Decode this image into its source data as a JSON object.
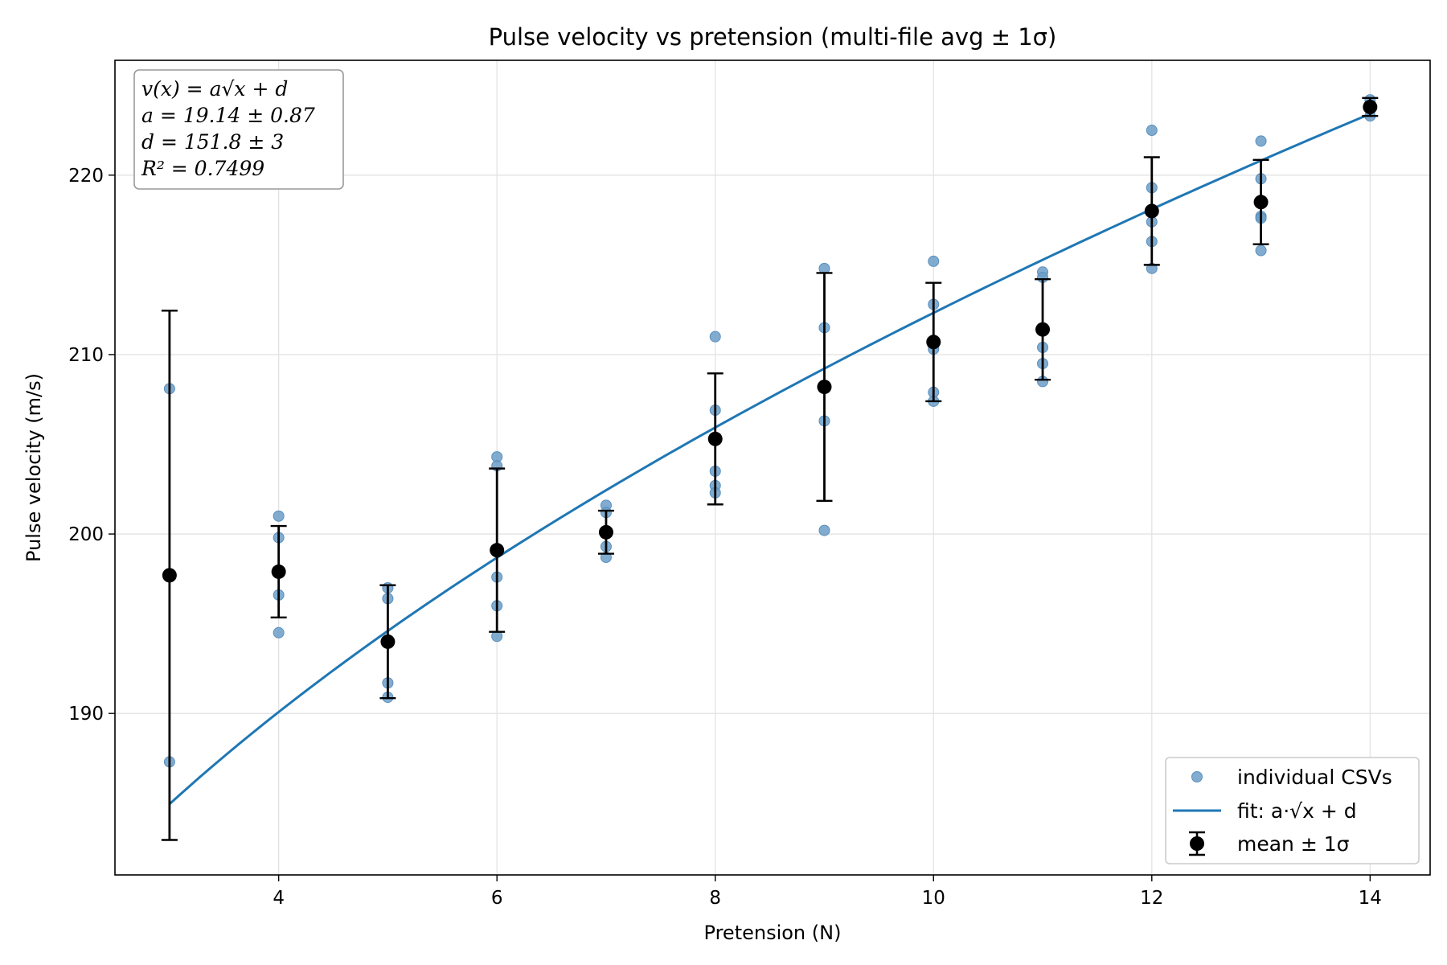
{
  "chart_data": {
    "type": "scatter",
    "title": "Pulse velocity vs pretension (multi-file avg ± 1σ)",
    "xlabel": "Pretension (N)",
    "ylabel": "Pulse velocity (m/s)",
    "xlim": [
      2.5,
      14.55
    ],
    "ylim": [
      181,
      226.4
    ],
    "x_ticks": [
      4,
      6,
      8,
      10,
      12,
      14
    ],
    "y_ticks": [
      190,
      200,
      210,
      220
    ],
    "grid": true,
    "legend_position": "lower-right",
    "legend": [
      {
        "label": "individual CSVs",
        "kind": "marker",
        "color": "#6b9dc8"
      },
      {
        "label": "fit: a·√x + d",
        "kind": "line",
        "color": "#1f77b4"
      },
      {
        "label": "mean ± 1σ",
        "kind": "errorbar",
        "color": "#000000"
      }
    ],
    "annotation": {
      "lines": [
        "v(x) = a√x + d",
        "a = 19.14 ± 0.87",
        "d = 151.8 ± 3",
        "R² = 0.7499"
      ]
    },
    "series": [
      {
        "name": "individual CSVs",
        "color": "#6b9dc8",
        "points": [
          [
            3,
            208.1
          ],
          [
            3,
            187.3
          ],
          [
            4,
            201.0
          ],
          [
            4,
            199.8
          ],
          [
            4,
            196.6
          ],
          [
            4,
            194.5
          ],
          [
            5,
            197.0
          ],
          [
            5,
            196.4
          ],
          [
            5,
            191.7
          ],
          [
            5,
            190.9
          ],
          [
            6,
            204.3
          ],
          [
            6,
            203.8
          ],
          [
            6,
            197.6
          ],
          [
            6,
            196.0
          ],
          [
            6,
            194.3
          ],
          [
            7,
            201.6
          ],
          [
            7,
            201.2
          ],
          [
            7,
            199.3
          ],
          [
            7,
            198.7
          ],
          [
            8,
            211.0
          ],
          [
            8,
            206.9
          ],
          [
            8,
            203.5
          ],
          [
            8,
            202.7
          ],
          [
            8,
            202.3
          ],
          [
            9,
            214.8
          ],
          [
            9,
            211.5
          ],
          [
            9,
            206.3
          ],
          [
            9,
            200.2
          ],
          [
            10,
            215.2
          ],
          [
            10,
            212.8
          ],
          [
            10,
            210.3
          ],
          [
            10,
            207.9
          ],
          [
            10,
            207.4
          ],
          [
            11,
            214.6
          ],
          [
            11,
            214.3
          ],
          [
            11,
            210.4
          ],
          [
            11,
            209.5
          ],
          [
            11,
            208.5
          ],
          [
            12,
            222.5
          ],
          [
            12,
            219.3
          ],
          [
            12,
            217.4
          ],
          [
            12,
            216.3
          ],
          [
            12,
            214.8
          ],
          [
            13,
            221.9
          ],
          [
            13,
            219.8
          ],
          [
            13,
            217.7
          ],
          [
            13,
            217.6
          ],
          [
            13,
            215.8
          ],
          [
            14,
            224.2
          ],
          [
            14,
            223.3
          ]
        ]
      },
      {
        "name": "mean ± 1σ",
        "color": "#000000",
        "x": [
          3,
          4,
          5,
          6,
          7,
          8,
          9,
          10,
          11,
          12,
          13,
          14
        ],
        "y": [
          197.7,
          197.9,
          194.0,
          199.1,
          200.1,
          205.3,
          208.2,
          210.7,
          211.4,
          218.0,
          218.5,
          223.8
        ],
        "yerr": [
          14.75,
          2.55,
          3.15,
          4.55,
          1.2,
          3.65,
          6.35,
          3.3,
          2.8,
          3.0,
          2.35,
          0.5
        ]
      },
      {
        "name": "fit: a·√x + d",
        "color": "#1f77b4",
        "a": 19.14,
        "d": 151.8,
        "x_range": [
          3,
          14
        ]
      }
    ]
  }
}
